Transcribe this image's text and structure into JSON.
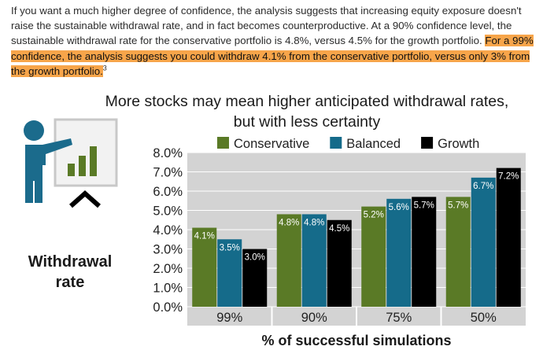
{
  "paragraph": {
    "text_plain": "If you want a much higher degree of confidence, the analysis suggests that increasing equity exposure doesn't raise the sustainable withdrawal rate, and in fact becomes counterproductive. At a 90% confidence level, the sustainable withdrawal rate for the conservative portfolio is 4.8%, versus 4.5% for the growth portfolio. ",
    "text_highlight": "For a 99% confidence, the analysis suggests you could withdraw 4.1% from the conservative portfolio, versus only 3% from the growth portfolio.",
    "footnote": "3"
  },
  "colors": {
    "highlight": "#f7a54a",
    "conservative": "#5a7a26",
    "balanced": "#156b8a",
    "growth": "#000000",
    "plot_bg": "#d3d3d3",
    "icon_blue": "#1b6b8c",
    "icon_green": "#5a7a26"
  },
  "icon": "presenter-chart-icon",
  "chart_data": {
    "type": "bar",
    "title": "More stocks may mean higher anticipated withdrawal rates, but with less certainty",
    "ylabel": "Withdrawal rate",
    "xlabel": "% of successful simulations",
    "categories": [
      "99%",
      "90%",
      "75%",
      "50%"
    ],
    "series": [
      {
        "name": "Conservative",
        "values": [
          4.1,
          4.8,
          5.2,
          5.7
        ],
        "labels": [
          "4.1%",
          "4.8%",
          "5.2%",
          "5.7%"
        ]
      },
      {
        "name": "Balanced",
        "values": [
          3.5,
          4.8,
          5.6,
          6.7
        ],
        "labels": [
          "3.5%",
          "4.8%",
          "5.6%",
          "6.7%"
        ]
      },
      {
        "name": "Growth",
        "values": [
          3.0,
          4.5,
          5.7,
          7.2
        ],
        "labels": [
          "3.0%",
          "4.5%",
          "5.7%",
          "7.2%"
        ]
      }
    ],
    "ylim": [
      0,
      8
    ],
    "yticks": [
      "0.0%",
      "1.0%",
      "2.0%",
      "3.0%",
      "4.0%",
      "5.0%",
      "6.0%",
      "7.0%",
      "8.0%"
    ],
    "legend_position": "top",
    "grid": true
  }
}
